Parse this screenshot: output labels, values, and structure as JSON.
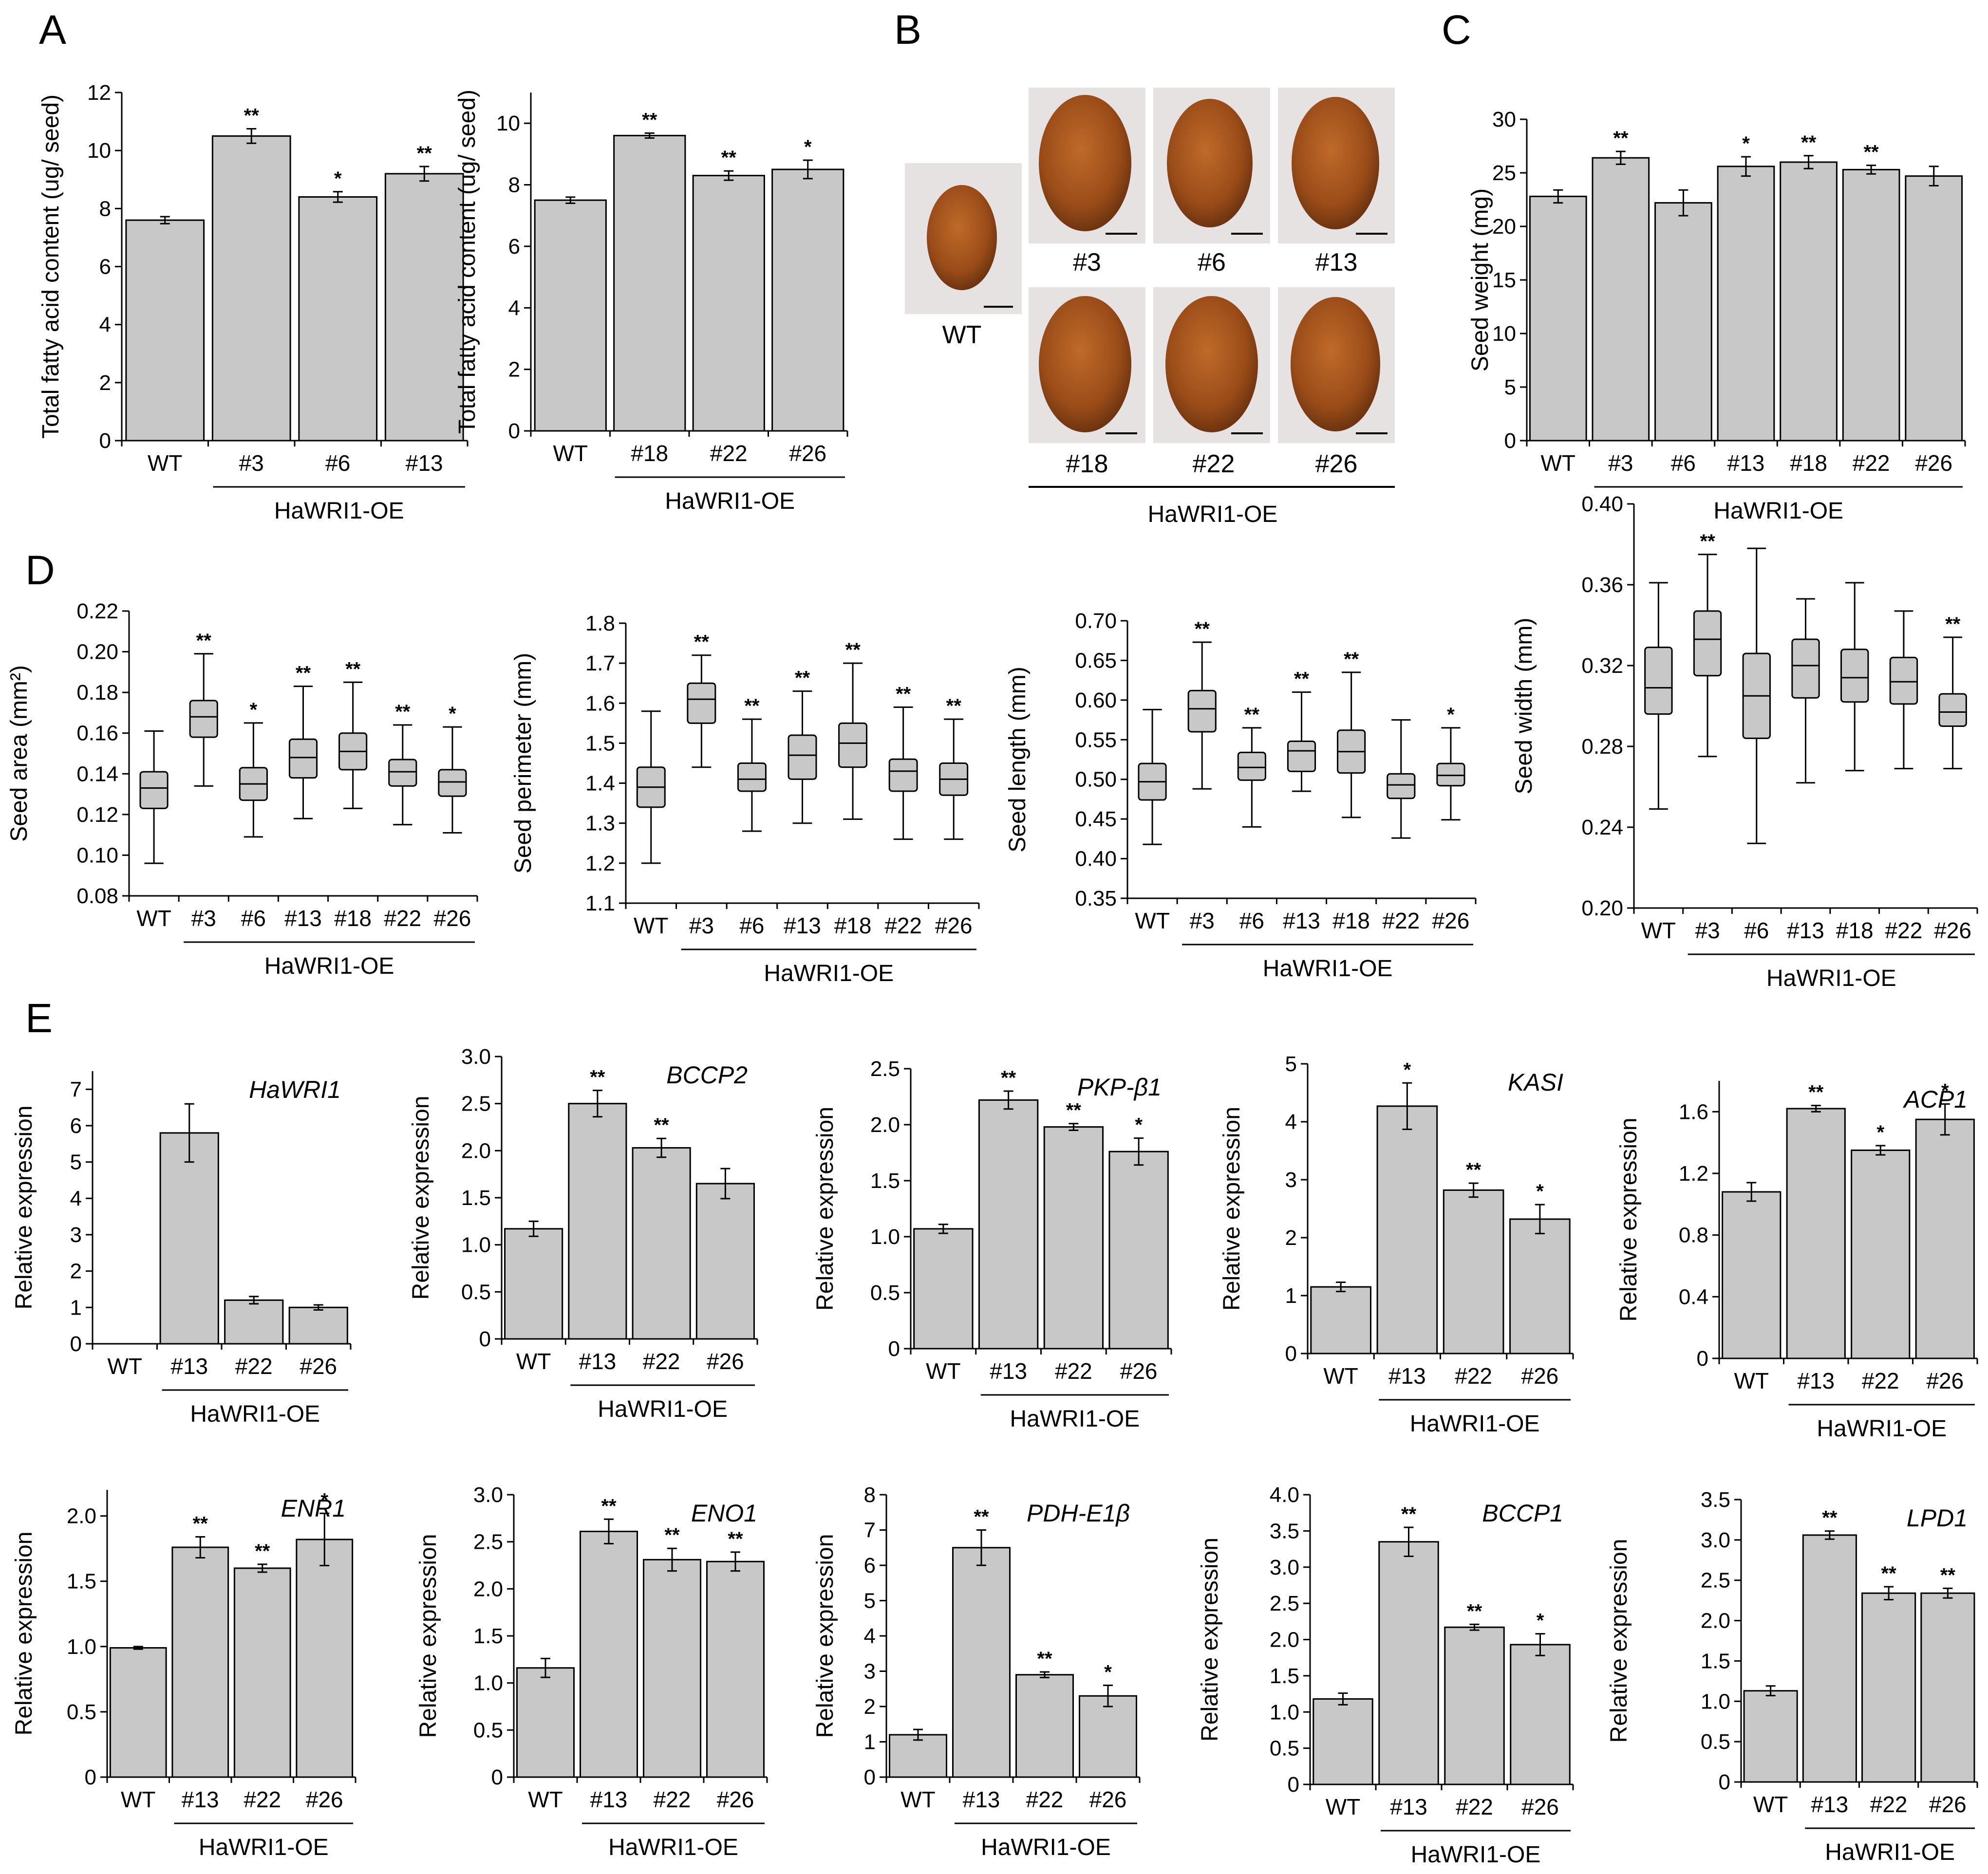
{
  "panels": {
    "A": "A",
    "B": "B",
    "C": "C",
    "D": "D",
    "E": "E"
  },
  "group_label": "HaWRI1-OE",
  "colors": {
    "bar": "#c8c8c8",
    "box": "#c8c8c8",
    "stroke": "#000000",
    "seed": "#a0521c",
    "seed_bg": "#e8e4e2"
  },
  "photos": {
    "wt_label": "WT",
    "top_labels": [
      "#3",
      "#6",
      "#13"
    ],
    "bottom_labels": [
      "#18",
      "#22",
      "#26"
    ],
    "group_label": "HaWRI1-OE"
  },
  "chart_data": [
    {
      "id": "A1",
      "type": "bar",
      "ylabel": "Total fatty acid content (ug/ seed)",
      "ylim": [
        0,
        12
      ],
      "yticks": [
        0,
        2,
        4,
        6,
        8,
        10,
        12
      ],
      "categories": [
        "WT",
        "#3",
        "#6",
        "#13"
      ],
      "values": [
        7.6,
        10.5,
        8.4,
        9.2
      ],
      "errors": [
        0.12,
        0.25,
        0.18,
        0.25
      ],
      "stars": [
        "",
        "**",
        "*",
        "**"
      ],
      "group_label": "HaWRI1-OE"
    },
    {
      "id": "A2",
      "type": "bar",
      "ylabel": "Total fatty acid content (ug/ seed)",
      "ylim": [
        0,
        11
      ],
      "yticks": [
        0,
        2,
        4,
        6,
        8,
        10
      ],
      "categories": [
        "WT",
        "#18",
        "#22",
        "#26"
      ],
      "values": [
        7.5,
        9.6,
        8.3,
        8.5
      ],
      "errors": [
        0.1,
        0.08,
        0.15,
        0.3
      ],
      "stars": [
        "",
        "**",
        "**",
        "*"
      ],
      "group_label": "HaWRI1-OE"
    },
    {
      "id": "C",
      "type": "bar",
      "ylabel": "Seed weight (mg)",
      "ylim": [
        0,
        30
      ],
      "yticks": [
        0,
        5,
        10,
        15,
        20,
        25,
        30
      ],
      "categories": [
        "WT",
        "#3",
        "#6",
        "#13",
        "#18",
        "#22",
        "#26"
      ],
      "values": [
        22.8,
        26.4,
        22.2,
        25.6,
        26.0,
        25.3,
        24.7
      ],
      "errors": [
        0.6,
        0.6,
        1.2,
        0.9,
        0.6,
        0.4,
        0.9
      ],
      "stars": [
        "",
        "**",
        "",
        "*",
        "**",
        "**",
        ""
      ],
      "group_label": "HaWRI1-OE"
    },
    {
      "id": "D1",
      "type": "box",
      "ylabel": "Seed area (mm²)",
      "ylim": [
        0.08,
        0.22
      ],
      "yticks": [
        "0.08",
        "0.10",
        "0.12",
        "0.14",
        "0.16",
        "0.18",
        "0.20",
        "0.22"
      ],
      "categories": [
        "WT",
        "#3",
        "#6",
        "#13",
        "#18",
        "#22",
        "#26"
      ],
      "boxes": [
        [
          0.096,
          0.123,
          0.133,
          0.141,
          0.161
        ],
        [
          0.134,
          0.158,
          0.168,
          0.176,
          0.199
        ],
        [
          0.109,
          0.127,
          0.135,
          0.143,
          0.165
        ],
        [
          0.118,
          0.138,
          0.148,
          0.157,
          0.183
        ],
        [
          0.123,
          0.142,
          0.151,
          0.16,
          0.185
        ],
        [
          0.115,
          0.134,
          0.141,
          0.147,
          0.164
        ],
        [
          0.111,
          0.129,
          0.136,
          0.142,
          0.163
        ]
      ],
      "stars": [
        "",
        "**",
        "*",
        "**",
        "**",
        "**",
        "*"
      ],
      "group_label": "HaWRI1-OE"
    },
    {
      "id": "D2",
      "type": "box",
      "ylabel": "Seed perimeter (mm)",
      "ylim": [
        1.1,
        1.8
      ],
      "yticks": [
        "1.1",
        "1.2",
        "1.3",
        "1.4",
        "1.5",
        "1.6",
        "1.7",
        "1.8"
      ],
      "categories": [
        "WT",
        "#3",
        "#6",
        "#13",
        "#18",
        "#22",
        "#26"
      ],
      "boxes": [
        [
          1.2,
          1.34,
          1.39,
          1.44,
          1.58
        ],
        [
          1.44,
          1.55,
          1.61,
          1.65,
          1.72
        ],
        [
          1.28,
          1.38,
          1.41,
          1.45,
          1.56
        ],
        [
          1.3,
          1.41,
          1.47,
          1.52,
          1.63
        ],
        [
          1.31,
          1.44,
          1.5,
          1.55,
          1.7
        ],
        [
          1.26,
          1.38,
          1.43,
          1.46,
          1.59
        ],
        [
          1.26,
          1.37,
          1.41,
          1.45,
          1.56
        ]
      ],
      "stars": [
        "",
        "**",
        "**",
        "**",
        "**",
        "**",
        "**"
      ],
      "group_label": "HaWRI1-OE"
    },
    {
      "id": "D3",
      "type": "box",
      "ylabel": "Seed length (mm)",
      "ylim": [
        0.35,
        0.7
      ],
      "yticks": [
        "0.35",
        "0.40",
        "0.45",
        "0.50",
        "0.55",
        "0.60",
        "0.65",
        "0.70"
      ],
      "categories": [
        "WT",
        "#3",
        "#6",
        "#13",
        "#18",
        "#22",
        "#26"
      ],
      "boxes": [
        [
          0.418,
          0.474,
          0.497,
          0.52,
          0.588
        ],
        [
          0.488,
          0.56,
          0.589,
          0.612,
          0.673
        ],
        [
          0.44,
          0.499,
          0.515,
          0.534,
          0.565
        ],
        [
          0.485,
          0.51,
          0.536,
          0.548,
          0.61
        ],
        [
          0.452,
          0.508,
          0.535,
          0.562,
          0.635
        ],
        [
          0.426,
          0.476,
          0.493,
          0.507,
          0.575
        ],
        [
          0.449,
          0.492,
          0.505,
          0.52,
          0.565
        ]
      ],
      "stars": [
        "",
        "**",
        "**",
        "**",
        "**",
        "",
        "*"
      ],
      "group_label": "HaWRI1-OE"
    },
    {
      "id": "D4",
      "type": "box",
      "ylabel": "Seed width (mm)",
      "ylim": [
        0.2,
        0.4
      ],
      "yticks": [
        "0.20",
        "0.24",
        "0.28",
        "0.32",
        "0.36",
        "0.40"
      ],
      "categories": [
        "WT",
        "#3",
        "#6",
        "#13",
        "#18",
        "#22",
        "#26"
      ],
      "boxes": [
        [
          0.249,
          0.296,
          0.309,
          0.329,
          0.361
        ],
        [
          0.275,
          0.315,
          0.333,
          0.347,
          0.375
        ],
        [
          0.232,
          0.284,
          0.305,
          0.326,
          0.378
        ],
        [
          0.262,
          0.304,
          0.32,
          0.333,
          0.353
        ],
        [
          0.268,
          0.302,
          0.314,
          0.328,
          0.361
        ],
        [
          0.269,
          0.301,
          0.312,
          0.324,
          0.347
        ],
        [
          0.269,
          0.29,
          0.297,
          0.306,
          0.334
        ]
      ],
      "stars": [
        "",
        "**",
        "",
        "",
        "",
        "",
        "**"
      ],
      "group_label": "HaWRI1-OE"
    },
    {
      "id": "E1",
      "type": "bar",
      "gene": "HaWRI1",
      "ylabel": "Relative expression",
      "ylim": [
        0,
        7.5
      ],
      "yticks": [
        "0",
        "1",
        "2",
        "3",
        "4",
        "5",
        "6",
        "7"
      ],
      "categories": [
        "WT",
        "#13",
        "#22",
        "#26"
      ],
      "values": [
        0,
        5.8,
        1.2,
        1.0
      ],
      "errors": [
        0,
        0.8,
        0.1,
        0.07
      ],
      "stars": [
        "",
        "",
        "",
        ""
      ],
      "group_label": "HaWRI1-OE"
    },
    {
      "id": "E2",
      "type": "bar",
      "gene": "BCCP2",
      "ylabel": "Relative expression",
      "ylim": [
        0,
        3.0
      ],
      "yticks": [
        "0",
        "0.5",
        "1.0",
        "1.5",
        "2.0",
        "2.5",
        "3.0"
      ],
      "categories": [
        "WT",
        "#13",
        "#22",
        "#26"
      ],
      "values": [
        1.17,
        2.5,
        2.03,
        1.65
      ],
      "errors": [
        0.08,
        0.14,
        0.1,
        0.16
      ],
      "stars": [
        "",
        "**",
        "**",
        ""
      ],
      "group_label": "HaWRI1-OE"
    },
    {
      "id": "E3",
      "type": "bar",
      "gene": "PKP-β1",
      "ylabel": "Relative expression",
      "ylim": [
        0,
        2.5
      ],
      "yticks": [
        "0",
        "0.5",
        "1.0",
        "1.5",
        "2.0",
        "2.5"
      ],
      "categories": [
        "WT",
        "#13",
        "#22",
        "#26"
      ],
      "values": [
        1.07,
        2.22,
        1.98,
        1.76
      ],
      "errors": [
        0.04,
        0.08,
        0.03,
        0.12
      ],
      "stars": [
        "",
        "**",
        "**",
        "*"
      ],
      "group_label": "HaWRI1-OE"
    },
    {
      "id": "E4",
      "type": "bar",
      "gene": "KASI",
      "ylabel": "Relative expression",
      "ylim": [
        0,
        5
      ],
      "yticks": [
        "0",
        "1",
        "2",
        "3",
        "4",
        "5"
      ],
      "categories": [
        "WT",
        "#13",
        "#22",
        "#26"
      ],
      "values": [
        1.15,
        4.27,
        2.82,
        2.32
      ],
      "errors": [
        0.08,
        0.4,
        0.12,
        0.25
      ],
      "stars": [
        "",
        "*",
        "**",
        "*"
      ],
      "group_label": "HaWRI1-OE"
    },
    {
      "id": "E5",
      "type": "bar",
      "gene": "ACP1",
      "ylabel": "Relative expression",
      "ylim": [
        0,
        1.8
      ],
      "yticks": [
        "0",
        "0.4",
        "0.8",
        "1.2",
        "1.6"
      ],
      "categories": [
        "WT",
        "#13",
        "#22",
        "#26"
      ],
      "values": [
        1.08,
        1.62,
        1.35,
        1.55
      ],
      "errors": [
        0.06,
        0.02,
        0.03,
        0.1
      ],
      "stars": [
        "",
        "**",
        "*",
        "*"
      ],
      "group_label": "HaWRI1-OE"
    },
    {
      "id": "E6",
      "type": "bar",
      "gene": "ENR1",
      "ylabel": "Relative expression",
      "ylim": [
        0,
        2.2
      ],
      "yticks": [
        "0",
        "0.5",
        "1.0",
        "1.5",
        "2.0"
      ],
      "categories": [
        "WT",
        "#13",
        "#22",
        "#26"
      ],
      "values": [
        0.99,
        1.76,
        1.6,
        1.82
      ],
      "errors": [
        0.01,
        0.08,
        0.03,
        0.2
      ],
      "stars": [
        "",
        "**",
        "**",
        "*"
      ],
      "group_label": "HaWRI1-OE"
    },
    {
      "id": "E7",
      "type": "bar",
      "gene": "ENO1",
      "ylabel": "Relative expression",
      "ylim": [
        0,
        3.0
      ],
      "yticks": [
        "0",
        "0.5",
        "1.0",
        "1.5",
        "2.0",
        "2.5",
        "3.0"
      ],
      "categories": [
        "WT",
        "#13",
        "#22",
        "#26"
      ],
      "values": [
        1.16,
        2.61,
        2.31,
        2.29
      ],
      "errors": [
        0.1,
        0.13,
        0.12,
        0.1
      ],
      "stars": [
        "",
        "**",
        "**",
        "**"
      ],
      "group_label": "HaWRI1-OE"
    },
    {
      "id": "E8",
      "type": "bar",
      "gene": "PDH-E1β",
      "ylabel": "Relative expression",
      "ylim": [
        0,
        8
      ],
      "yticks": [
        "0",
        "1",
        "2",
        "3",
        "4",
        "5",
        "6",
        "7",
        "8"
      ],
      "categories": [
        "WT",
        "#13",
        "#22",
        "#26"
      ],
      "values": [
        1.2,
        6.5,
        2.9,
        2.3
      ],
      "errors": [
        0.15,
        0.5,
        0.08,
        0.3
      ],
      "stars": [
        "",
        "**",
        "**",
        "*"
      ],
      "group_label": "HaWRI1-OE"
    },
    {
      "id": "E9",
      "type": "bar",
      "gene": "BCCP1",
      "ylabel": "Relative expression",
      "ylim": [
        0,
        4.0
      ],
      "yticks": [
        "0",
        "0.5",
        "1.0",
        "1.5",
        "2.0",
        "2.5",
        "3.0",
        "3.5",
        "4.0"
      ],
      "categories": [
        "WT",
        "#13",
        "#22",
        "#26"
      ],
      "values": [
        1.18,
        3.35,
        2.17,
        1.93
      ],
      "errors": [
        0.08,
        0.2,
        0.04,
        0.15
      ],
      "stars": [
        "",
        "**",
        "**",
        "*"
      ],
      "group_label": "HaWRI1-OE"
    },
    {
      "id": "E10",
      "type": "bar",
      "gene": "LPD1",
      "ylabel": "Relative expression",
      "ylim": [
        0,
        3.5
      ],
      "yticks": [
        "0",
        "0.5",
        "1.0",
        "1.5",
        "2.0",
        "2.5",
        "3.0",
        "3.5"
      ],
      "categories": [
        "WT",
        "#13",
        "#22",
        "#26"
      ],
      "values": [
        1.13,
        3.06,
        2.34,
        2.34
      ],
      "errors": [
        0.06,
        0.05,
        0.08,
        0.06
      ],
      "stars": [
        "",
        "**",
        "**",
        "**"
      ],
      "group_label": "HaWRI1-OE"
    }
  ]
}
